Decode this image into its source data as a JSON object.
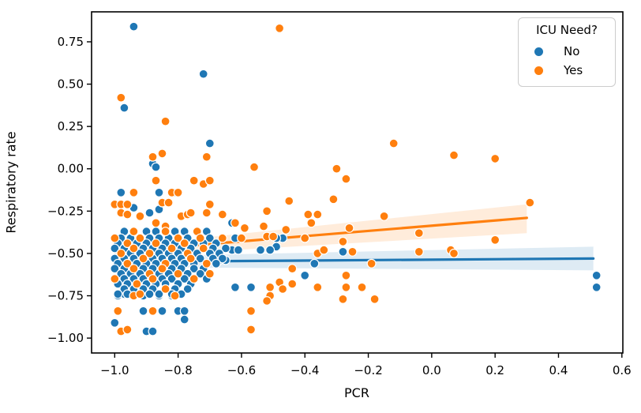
{
  "chart_data": {
    "type": "scatter",
    "title": "",
    "xlabel": "PCR",
    "ylabel": "Respiratory rate",
    "xlim": [
      -1.073,
      0.603
    ],
    "ylim": [
      -1.088,
      0.927
    ],
    "grid": false,
    "xticks": {
      "positions": [
        -1.0,
        -0.8,
        -0.6,
        -0.4,
        -0.2,
        0.0,
        0.2,
        0.4,
        0.6
      ],
      "labels": [
        "−1.0",
        "−0.8",
        "−0.6",
        "−0.4",
        "−0.2",
        "0.0",
        "0.2",
        "0.4",
        "0.6"
      ]
    },
    "yticks": {
      "positions": [
        0.75,
        0.5,
        0.25,
        0.0,
        -0.25,
        -0.5,
        -0.75,
        -1.0
      ],
      "labels": [
        "0.75",
        "0.50",
        "0.25",
        "0.00",
        "−0.25",
        "−0.50",
        "−0.75",
        "−1.00"
      ]
    },
    "legend": {
      "title": "ICU Need?",
      "position": "upper right",
      "items": [
        "No",
        "Yes"
      ]
    },
    "series": [
      {
        "name": "No",
        "color": "#1f77b4",
        "band_color": "rgba(31,119,180,0.15)",
        "regression_line": {
          "x": [
            -1.0,
            0.51
          ],
          "y": [
            -0.55,
            -0.53
          ]
        },
        "confidence_band": {
          "x": [
            -1.0,
            0.51
          ],
          "y_top": [
            -0.52,
            -0.46
          ],
          "y_bottom": [
            -0.58,
            -0.6
          ]
        },
        "points": [
          [
            -0.94,
            0.84
          ],
          [
            -0.72,
            0.56
          ],
          [
            -0.97,
            0.36
          ],
          [
            -0.7,
            0.15
          ],
          [
            -0.88,
            0.03
          ],
          [
            -0.87,
            0.01
          ],
          [
            -0.98,
            -0.14
          ],
          [
            -0.86,
            -0.14
          ],
          [
            -0.81,
            -0.14
          ],
          [
            -0.94,
            -0.23
          ],
          [
            -0.89,
            -0.26
          ],
          [
            -0.86,
            -0.24
          ],
          [
            -0.63,
            -0.32
          ],
          [
            -0.49,
            -0.46
          ],
          [
            -0.47,
            -0.41
          ],
          [
            -0.62,
            -0.41
          ],
          [
            -0.49,
            -0.41
          ],
          [
            -0.37,
            -0.56
          ],
          [
            -0.4,
            -0.63
          ],
          [
            -0.62,
            -0.7
          ],
          [
            -0.57,
            -0.7
          ],
          [
            -0.28,
            -0.49
          ],
          [
            0.52,
            -0.63
          ],
          [
            0.52,
            -0.7
          ],
          [
            -0.99,
            -0.75
          ],
          [
            -0.97,
            -0.74
          ],
          [
            -0.91,
            -0.75
          ],
          [
            -0.86,
            -0.75
          ],
          [
            -0.82,
            -0.75
          ],
          [
            -0.91,
            -0.84
          ],
          [
            -0.85,
            -0.84
          ],
          [
            -0.8,
            -0.84
          ],
          [
            -0.78,
            -0.84
          ],
          [
            -0.78,
            -0.89
          ],
          [
            -1.0,
            -0.91
          ],
          [
            -0.9,
            -0.96
          ],
          [
            -0.88,
            -0.96
          ],
          [
            -0.67,
            -0.54
          ],
          [
            -0.65,
            -0.54
          ],
          [
            -0.63,
            -0.48
          ],
          [
            -0.61,
            -0.48
          ],
          [
            -0.54,
            -0.48
          ],
          [
            -0.51,
            -0.48
          ],
          [
            -0.97,
            -0.37
          ],
          [
            -0.9,
            -0.37
          ],
          [
            -0.87,
            -0.37
          ],
          [
            -0.81,
            -0.37
          ],
          [
            -0.78,
            -0.37
          ],
          [
            -0.71,
            -0.37
          ],
          [
            -0.98,
            -0.41
          ],
          [
            -0.95,
            -0.41
          ],
          [
            -0.89,
            -0.41
          ],
          [
            -0.86,
            -0.41
          ],
          [
            -0.83,
            -0.41
          ],
          [
            -0.77,
            -0.41
          ],
          [
            -0.7,
            -0.41
          ],
          [
            -0.99,
            -0.44
          ],
          [
            -0.93,
            -0.44
          ],
          [
            -0.9,
            -0.44
          ],
          [
            -0.84,
            -0.44
          ],
          [
            -0.81,
            -0.44
          ],
          [
            -0.75,
            -0.44
          ],
          [
            -0.72,
            -0.44
          ],
          [
            -0.68,
            -0.44
          ],
          [
            -1.0,
            -0.47
          ],
          [
            -0.97,
            -0.47
          ],
          [
            -0.91,
            -0.47
          ],
          [
            -0.88,
            -0.47
          ],
          [
            -0.85,
            -0.47
          ],
          [
            -0.79,
            -0.47
          ],
          [
            -0.76,
            -0.47
          ],
          [
            -0.69,
            -0.47
          ],
          [
            -0.65,
            -0.47
          ],
          [
            -0.95,
            -0.5
          ],
          [
            -0.92,
            -0.5
          ],
          [
            -0.86,
            -0.5
          ],
          [
            -0.83,
            -0.5
          ],
          [
            -0.8,
            -0.5
          ],
          [
            -0.74,
            -0.5
          ],
          [
            -0.7,
            -0.5
          ],
          [
            -0.67,
            -0.5
          ],
          [
            -1.0,
            -0.53
          ],
          [
            -0.97,
            -0.53
          ],
          [
            -0.94,
            -0.53
          ],
          [
            -0.88,
            -0.53
          ],
          [
            -0.85,
            -0.53
          ],
          [
            -0.82,
            -0.53
          ],
          [
            -0.79,
            -0.53
          ],
          [
            -0.73,
            -0.53
          ],
          [
            -0.69,
            -0.53
          ],
          [
            -0.66,
            -0.53
          ],
          [
            -0.99,
            -0.56
          ],
          [
            -0.93,
            -0.56
          ],
          [
            -0.9,
            -0.56
          ],
          [
            -0.87,
            -0.56
          ],
          [
            -0.81,
            -0.56
          ],
          [
            -0.78,
            -0.56
          ],
          [
            -0.75,
            -0.56
          ],
          [
            -0.68,
            -0.56
          ],
          [
            -1.0,
            -0.59
          ],
          [
            -0.97,
            -0.59
          ],
          [
            -0.91,
            -0.59
          ],
          [
            -0.88,
            -0.59
          ],
          [
            -0.82,
            -0.59
          ],
          [
            -0.79,
            -0.59
          ],
          [
            -0.75,
            -0.59
          ],
          [
            -0.72,
            -0.59
          ],
          [
            -0.98,
            -0.62
          ],
          [
            -0.95,
            -0.62
          ],
          [
            -0.92,
            -0.62
          ],
          [
            -0.86,
            -0.62
          ],
          [
            -0.83,
            -0.62
          ],
          [
            -0.77,
            -0.62
          ],
          [
            -0.73,
            -0.62
          ],
          [
            -0.97,
            -0.65
          ],
          [
            -0.94,
            -0.65
          ],
          [
            -0.91,
            -0.65
          ],
          [
            -0.85,
            -0.65
          ],
          [
            -0.82,
            -0.65
          ],
          [
            -0.78,
            -0.65
          ],
          [
            -0.71,
            -0.65
          ],
          [
            -0.99,
            -0.68
          ],
          [
            -0.96,
            -0.68
          ],
          [
            -0.9,
            -0.68
          ],
          [
            -0.87,
            -0.68
          ],
          [
            -0.84,
            -0.68
          ],
          [
            -0.8,
            -0.68
          ],
          [
            -0.76,
            -0.68
          ],
          [
            -0.97,
            -0.71
          ],
          [
            -0.94,
            -0.71
          ],
          [
            -0.91,
            -0.71
          ],
          [
            -0.88,
            -0.71
          ],
          [
            -0.81,
            -0.71
          ],
          [
            -0.77,
            -0.71
          ],
          [
            -0.99,
            -0.74
          ],
          [
            -0.96,
            -0.74
          ],
          [
            -0.89,
            -0.74
          ],
          [
            -0.86,
            -0.74
          ],
          [
            -0.82,
            -0.74
          ],
          [
            -0.79,
            -0.74
          ]
        ]
      },
      {
        "name": "Yes",
        "color": "#ff7f0e",
        "band_color": "rgba(255,127,14,0.15)",
        "regression_line": {
          "x": [
            -1.0,
            0.3
          ],
          "y": [
            -0.49,
            -0.29
          ]
        },
        "confidence_band": {
          "x": [
            -1.0,
            0.3
          ],
          "y_top": [
            -0.46,
            -0.21
          ],
          "y_bottom": [
            -0.52,
            -0.38
          ]
        },
        "points": [
          [
            -0.98,
            0.42
          ],
          [
            -0.48,
            0.83
          ],
          [
            -0.84,
            0.28
          ],
          [
            -0.12,
            0.15
          ],
          [
            0.07,
            0.08
          ],
          [
            0.2,
            0.06
          ],
          [
            -0.3,
            0.0
          ],
          [
            -0.56,
            0.01
          ],
          [
            -0.85,
            0.09
          ],
          [
            -0.88,
            0.07
          ],
          [
            -0.71,
            0.07
          ],
          [
            -0.87,
            -0.07
          ],
          [
            -0.75,
            -0.07
          ],
          [
            -0.72,
            -0.09
          ],
          [
            -0.7,
            -0.07
          ],
          [
            -0.27,
            -0.06
          ],
          [
            -0.94,
            -0.14
          ],
          [
            -0.82,
            -0.14
          ],
          [
            -0.8,
            -0.14
          ],
          [
            -1.0,
            -0.21
          ],
          [
            -0.98,
            -0.21
          ],
          [
            -0.96,
            -0.21
          ],
          [
            -0.85,
            -0.2
          ],
          [
            -0.83,
            -0.2
          ],
          [
            -0.7,
            -0.21
          ],
          [
            -0.31,
            -0.18
          ],
          [
            -0.45,
            -0.19
          ],
          [
            0.31,
            -0.2
          ],
          [
            -0.98,
            -0.26
          ],
          [
            -0.96,
            -0.27
          ],
          [
            -0.92,
            -0.28
          ],
          [
            -0.79,
            -0.28
          ],
          [
            -0.77,
            -0.27
          ],
          [
            -0.76,
            -0.26
          ],
          [
            -0.71,
            -0.26
          ],
          [
            -0.66,
            -0.27
          ],
          [
            -0.52,
            -0.25
          ],
          [
            -0.39,
            -0.27
          ],
          [
            -0.36,
            -0.27
          ],
          [
            -0.15,
            -0.28
          ],
          [
            -0.62,
            -0.32
          ],
          [
            -0.87,
            -0.32
          ],
          [
            -0.84,
            -0.34
          ],
          [
            -0.59,
            -0.35
          ],
          [
            -0.53,
            -0.34
          ],
          [
            -0.38,
            -0.32
          ],
          [
            -0.26,
            -0.35
          ],
          [
            -0.46,
            -0.36
          ],
          [
            -0.04,
            -0.38
          ],
          [
            -0.66,
            -0.41
          ],
          [
            -0.6,
            -0.41
          ],
          [
            -0.52,
            -0.4
          ],
          [
            -0.5,
            -0.4
          ],
          [
            -0.4,
            -0.41
          ],
          [
            0.2,
            -0.42
          ],
          [
            -0.28,
            -0.43
          ],
          [
            -0.36,
            -0.5
          ],
          [
            -0.34,
            -0.48
          ],
          [
            -0.25,
            -0.49
          ],
          [
            -0.04,
            -0.49
          ],
          [
            0.06,
            -0.48
          ],
          [
            0.07,
            -0.5
          ],
          [
            -0.44,
            -0.59
          ],
          [
            -0.19,
            -0.56
          ],
          [
            -0.48,
            -0.67
          ],
          [
            -0.44,
            -0.68
          ],
          [
            -0.27,
            -0.63
          ],
          [
            -0.51,
            -0.7
          ],
          [
            -0.47,
            -0.71
          ],
          [
            -0.36,
            -0.7
          ],
          [
            -0.27,
            -0.7
          ],
          [
            -0.22,
            -0.7
          ],
          [
            -0.51,
            -0.75
          ],
          [
            -0.28,
            -0.77
          ],
          [
            -0.18,
            -0.77
          ],
          [
            -0.52,
            -0.78
          ],
          [
            -0.94,
            -0.75
          ],
          [
            -0.81,
            -0.75
          ],
          [
            -0.99,
            -0.84
          ],
          [
            -0.88,
            -0.84
          ],
          [
            -0.57,
            -0.84
          ],
          [
            -0.98,
            -0.96
          ],
          [
            -0.96,
            -0.95
          ],
          [
            -0.57,
            -0.95
          ],
          [
            -0.94,
            -0.37
          ],
          [
            -0.84,
            -0.37
          ],
          [
            -0.74,
            -0.37
          ],
          [
            -1.0,
            -0.41
          ],
          [
            -0.92,
            -0.41
          ],
          [
            -0.8,
            -0.41
          ],
          [
            -0.73,
            -0.41
          ],
          [
            -0.96,
            -0.44
          ],
          [
            -0.87,
            -0.44
          ],
          [
            -0.78,
            -0.44
          ],
          [
            -0.94,
            -0.47
          ],
          [
            -0.82,
            -0.47
          ],
          [
            -0.72,
            -0.47
          ],
          [
            -0.98,
            -0.5
          ],
          [
            -0.89,
            -0.5
          ],
          [
            -0.77,
            -0.5
          ],
          [
            -0.91,
            -0.53
          ],
          [
            -0.76,
            -0.53
          ],
          [
            -0.96,
            -0.56
          ],
          [
            -0.84,
            -0.56
          ],
          [
            -0.71,
            -0.56
          ],
          [
            -0.94,
            -0.59
          ],
          [
            -0.85,
            -0.59
          ],
          [
            -0.89,
            -0.62
          ],
          [
            -0.8,
            -0.62
          ],
          [
            -0.7,
            -0.62
          ],
          [
            -1.0,
            -0.65
          ],
          [
            -0.88,
            -0.65
          ],
          [
            -0.75,
            -0.65
          ],
          [
            -0.93,
            -0.68
          ],
          [
            -0.84,
            -0.71
          ],
          [
            -0.92,
            -0.74
          ]
        ]
      }
    ]
  }
}
